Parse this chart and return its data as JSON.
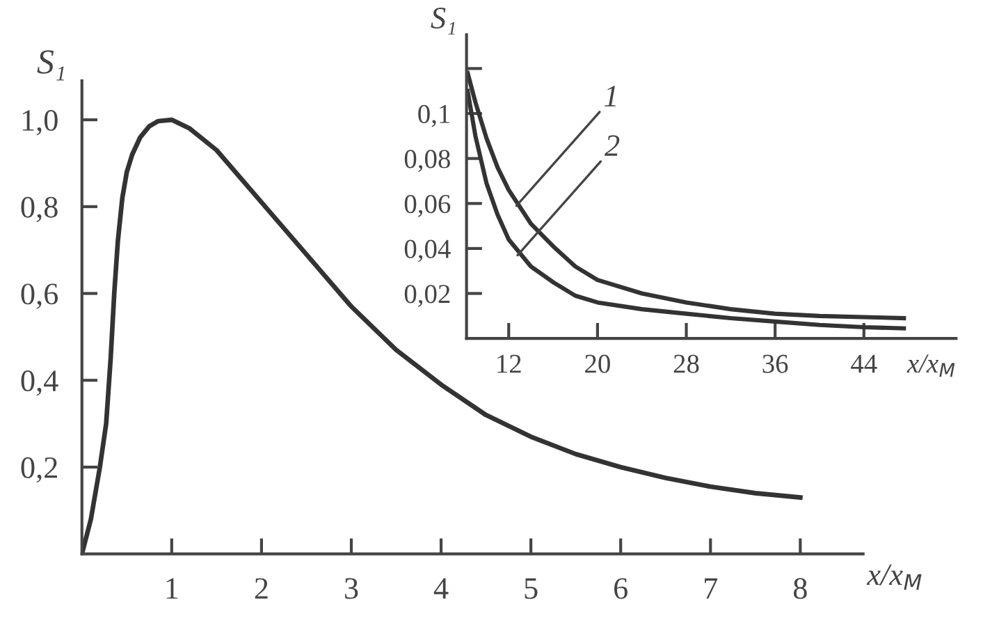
{
  "chart_data": [
    {
      "type": "line",
      "xlabel": "x/x$_{M}$",
      "ylabel": "S₁",
      "series": [
        {
          "color": "#333333",
          "x": [
            0,
            0.1,
            0.2,
            0.27,
            0.32,
            0.36,
            0.4,
            0.45,
            0.5,
            0.56,
            0.65,
            0.75,
            0.85,
            1.0,
            1.2,
            1.5,
            2.0,
            2.5,
            3.0,
            3.5,
            4.0,
            4.5,
            5.0,
            5.5,
            6.0,
            6.5,
            7.0,
            7.5,
            8.0
          ],
          "values": [
            0,
            0.08,
            0.2,
            0.3,
            0.45,
            0.6,
            0.72,
            0.82,
            0.88,
            0.92,
            0.96,
            0.985,
            0.997,
            1.0,
            0.98,
            0.93,
            0.81,
            0.69,
            0.57,
            0.47,
            0.39,
            0.32,
            0.27,
            0.23,
            0.2,
            0.175,
            0.155,
            0.14,
            0.13
          ]
        }
      ],
      "xlim": [
        0,
        8.7
      ],
      "ylim": [
        0,
        1.09
      ],
      "xticks": [
        1,
        2,
        3,
        4,
        5,
        6,
        7,
        8
      ],
      "yticks": [
        {
          "value": 0.2,
          "label": "0,2"
        },
        {
          "value": 0.4,
          "label": "0,4"
        },
        {
          "value": 0.6,
          "label": "0,6"
        },
        {
          "value": 0.8,
          "label": "0,8"
        },
        {
          "value": 1.0,
          "label": "1,0"
        }
      ],
      "line_style": "solid",
      "marker": "none",
      "grid": false,
      "legend": false
    },
    {
      "type": "line",
      "xlabel": "x/x$_{M}$",
      "ylabel": "S₁",
      "series": [
        {
          "color": "#333333",
          "x": [
            8.3,
            9,
            10,
            11,
            12,
            14,
            16,
            18,
            20,
            24,
            28,
            32,
            36,
            40,
            44,
            47.6
          ],
          "values": [
            0.118,
            0.105,
            0.089,
            0.076,
            0.066,
            0.051,
            0.041,
            0.032,
            0.026,
            0.02,
            0.016,
            0.013,
            0.011,
            0.01,
            0.0095,
            0.009
          ]
        },
        {
          "color": "#333333",
          "x": [
            8.3,
            9,
            10,
            11,
            12,
            14,
            16,
            18,
            20,
            24,
            28,
            32,
            36,
            40,
            44,
            47.6
          ],
          "values": [
            0.11,
            0.09,
            0.069,
            0.055,
            0.044,
            0.032,
            0.025,
            0.019,
            0.016,
            0.013,
            0.011,
            0.009,
            0.0075,
            0.006,
            0.005,
            0.0045
          ]
        }
      ],
      "annotations": [
        {
          "text": "1",
          "x": 12.7,
          "y": 0.059
        },
        {
          "text": "2",
          "x": 12.8,
          "y": 0.037
        }
      ],
      "xlim": [
        8.2,
        52.3
      ],
      "ylim": [
        0,
        0.135
      ],
      "xticks": [
        12,
        20,
        28,
        36,
        44
      ],
      "yticks": [
        {
          "value": 0.02,
          "label": "0,02"
        },
        {
          "value": 0.04,
          "label": "0,04"
        },
        {
          "value": 0.06,
          "label": "0,06"
        },
        {
          "value": 0.08,
          "label": "0,08"
        },
        {
          "value": 0.1,
          "label": "0,1"
        },
        {
          "value": 0.12,
          "label": null
        }
      ],
      "line_style": "solid",
      "marker": "none",
      "grid": false,
      "legend": false
    }
  ]
}
